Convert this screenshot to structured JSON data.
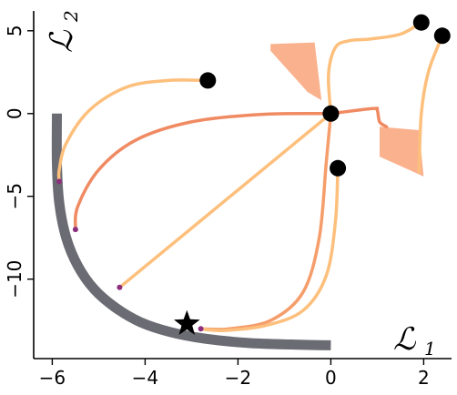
{
  "chart_data": {
    "type": "line",
    "xlabel": "ℒ",
    "xlabel_sub": "1",
    "ylabel": "ℒ",
    "ylabel_sub": "2",
    "xlim": [
      -6.4,
      2.6
    ],
    "ylim": [
      -14.8,
      6.2
    ],
    "xticks": [
      -6,
      -4,
      -2,
      0,
      2
    ],
    "yticks": [
      -10,
      -5,
      0,
      5
    ],
    "xtick_labels": [
      "−6",
      "−4",
      "−2",
      "0",
      "2"
    ],
    "ytick_labels": [
      "−10",
      "−5",
      "0",
      "5"
    ],
    "grid": false,
    "colors": {
      "front": "#6b6b73",
      "light_path": "#fdbf7c",
      "dark_path": "#f08a62",
      "mid_path": "#f59d6b",
      "noise": "#f9a57a",
      "marker": "#000000",
      "end_dot": "#8c2f7d"
    },
    "pareto_front": {
      "x": [
        -5.9,
        -5.9,
        -5.85,
        -5.7,
        -5.45,
        -5.1,
        -4.65,
        -4.1,
        -3.45,
        -2.7,
        -1.8,
        -0.85,
        0.0
      ],
      "y": [
        0.0,
        -3.0,
        -5.4,
        -7.5,
        -9.2,
        -10.6,
        -11.7,
        -12.6,
        -13.2,
        -13.6,
        -13.85,
        -13.95,
        -14.0
      ]
    },
    "optimum": {
      "x": -3.1,
      "y": -12.7
    },
    "start_points": [
      {
        "x": -2.65,
        "y": 2.0
      },
      {
        "x": 0.0,
        "y": 0.0
      },
      {
        "x": 0.15,
        "y": -3.3
      },
      {
        "x": 1.95,
        "y": 5.5
      },
      {
        "x": 2.4,
        "y": 4.7
      }
    ],
    "end_points": [
      {
        "x": -5.85,
        "y": -4.1
      },
      {
        "x": -5.5,
        "y": -7.0
      },
      {
        "x": -4.55,
        "y": -10.5
      },
      {
        "x": -2.8,
        "y": -13.0
      }
    ],
    "series": [
      {
        "color_key": "light_path",
        "x": [
          -2.65,
          -3.5,
          -4.4,
          -5.2,
          -5.7,
          -5.85,
          -5.85
        ],
        "y": [
          2.0,
          2.0,
          1.6,
          0.2,
          -1.8,
          -3.4,
          -4.1
        ]
      },
      {
        "color_key": "dark_path",
        "x": [
          0.0,
          -1.5,
          -3.0,
          -4.2,
          -5.0,
          -5.45,
          -5.5
        ],
        "y": [
          0.0,
          -0.05,
          -0.5,
          -1.6,
          -3.4,
          -5.6,
          -7.0
        ]
      },
      {
        "color_key": "light_path",
        "x": [
          0.0,
          -4.55
        ],
        "y": [
          0.0,
          -10.5
        ]
      },
      {
        "color_key": "mid_path",
        "x": [
          0.0,
          -0.1,
          -0.25,
          -0.6,
          -1.3,
          -2.2,
          -2.8
        ],
        "y": [
          0.0,
          -3.0,
          -7.5,
          -10.8,
          -12.5,
          -13.0,
          -13.0
        ]
      },
      {
        "color_key": "light_path",
        "x": [
          0.15,
          0.1,
          -0.1,
          -0.6,
          -1.4,
          -2.3,
          -2.8
        ],
        "y": [
          -3.3,
          -6.5,
          -9.8,
          -11.9,
          -12.8,
          -13.1,
          -13.0
        ]
      },
      {
        "color_key": "dark_path",
        "x": [
          0.0,
          0.9,
          1.0,
          1.05,
          1.2
        ],
        "y": [
          0.0,
          0.3,
          0.2,
          -0.5,
          -0.8
        ]
      },
      {
        "color_key": "light_path",
        "x": [
          0.0,
          -0.05,
          0.1,
          0.4,
          0.85,
          1.5,
          1.95
        ],
        "y": [
          0.0,
          2.4,
          4.0,
          4.4,
          4.5,
          4.8,
          5.5
        ]
      },
      {
        "color_key": "light_path",
        "x": [
          2.4,
          2.1,
          1.95,
          1.9
        ],
        "y": [
          4.7,
          2.5,
          0.0,
          -3.5
        ]
      }
    ],
    "noise_regions": [
      {
        "x": [
          -1.3,
          -0.35,
          -0.2,
          -0.5,
          -1.3
        ],
        "y": [
          4.2,
          4.3,
          0.8,
          1.3,
          3.8
        ]
      },
      {
        "x": [
          1.05,
          1.9,
          2.0,
          1.05
        ],
        "y": [
          -0.8,
          -1.0,
          -3.8,
          -2.6
        ]
      }
    ]
  }
}
